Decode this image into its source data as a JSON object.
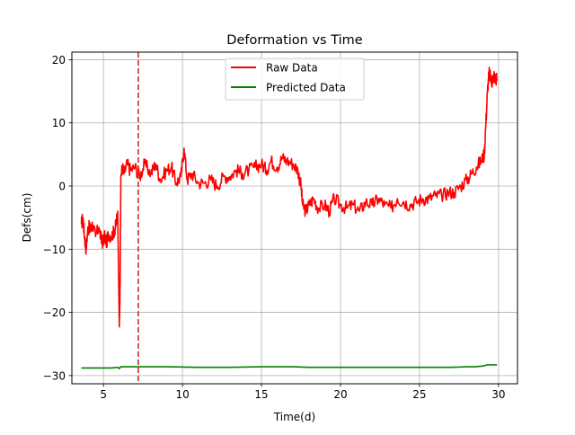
{
  "chart_data": {
    "type": "line",
    "title": "Deformation vs Time",
    "xlabel": "Time(d)",
    "ylabel": "Defs(cm)",
    "xlim": [
      3.0,
      31.2
    ],
    "ylim": [
      -31.3,
      21.2
    ],
    "x_ticks": [
      5,
      10,
      15,
      20,
      25,
      30
    ],
    "y_ticks": [
      -30,
      -20,
      -10,
      0,
      10,
      20
    ],
    "y_tick_labels": [
      "−30",
      "−20",
      "−10",
      "0",
      "10",
      "20"
    ],
    "grid": true,
    "legend_position": "upper center",
    "vline": {
      "x": 7.2,
      "color": "#d62728",
      "style": "dashed"
    },
    "series": [
      {
        "name": "Raw Data",
        "color": "#ff0000",
        "x": [
          3.6,
          3.7,
          3.8,
          3.9,
          4.0,
          4.1,
          4.2,
          4.3,
          4.5,
          4.7,
          4.9,
          5.0,
          5.1,
          5.2,
          5.3,
          5.5,
          5.7,
          5.8,
          5.9,
          6.0,
          6.05,
          6.1,
          6.2,
          6.3,
          6.5,
          6.7,
          7.0,
          7.3,
          7.6,
          8.0,
          8.3,
          8.6,
          9.0,
          9.3,
          9.6,
          9.9,
          10.1,
          10.3,
          10.6,
          11.0,
          11.4,
          11.8,
          12.2,
          12.6,
          13.0,
          13.4,
          13.8,
          14.2,
          14.6,
          15.0,
          15.3,
          15.6,
          16.0,
          16.3,
          16.6,
          17.0,
          17.3,
          17.5,
          17.6,
          17.8,
          18.0,
          18.3,
          18.6,
          19.0,
          19.3,
          19.6,
          20.0,
          20.4,
          20.8,
          21.2,
          21.6,
          22.0,
          22.4,
          22.8,
          23.2,
          23.6,
          24.0,
          24.4,
          24.8,
          25.2,
          25.6,
          26.0,
          26.4,
          26.8,
          27.2,
          27.6,
          28.0,
          28.3,
          28.6,
          28.9,
          29.1,
          29.2,
          29.3,
          29.4,
          29.5,
          29.6,
          29.7,
          29.8,
          29.9
        ],
        "y": [
          -6,
          -5,
          -8,
          -10,
          -7,
          -6.5,
          -7,
          -6,
          -8,
          -6.5,
          -9,
          -8.5,
          -8,
          -9,
          -7.5,
          -8,
          -7,
          -6,
          -4,
          -22,
          -16,
          1.5,
          3,
          2,
          3.5,
          2.5,
          3,
          1.5,
          3.5,
          2,
          3.5,
          1,
          2.5,
          3,
          0.5,
          1.5,
          6,
          1,
          2,
          0.5,
          0.5,
          1,
          0,
          1.5,
          1.5,
          2.5,
          2,
          2.5,
          3,
          3.5,
          2.5,
          4,
          3,
          4.5,
          4,
          3.5,
          2.5,
          0,
          -3,
          -4,
          -3,
          -2,
          -3.5,
          -3,
          -4,
          -2,
          -3,
          -3.5,
          -3,
          -4,
          -2.5,
          -3,
          -2,
          -3,
          -3.5,
          -2,
          -2.5,
          -3,
          -2.5,
          -2,
          -2,
          -1.5,
          -1.5,
          -1,
          -1,
          0,
          1,
          2,
          3,
          4,
          5,
          10,
          15,
          18,
          17,
          16.5,
          17.5,
          17,
          17
        ],
        "x_extra": [],
        "y_extra": []
      },
      {
        "name": "Predicted Data",
        "color": "#008000",
        "x": [
          3.6,
          4.5,
          5.5,
          5.9,
          6.0,
          6.1,
          6.6,
          7.5,
          9,
          11,
          13,
          15,
          16,
          17,
          18,
          20,
          22,
          24,
          26,
          27,
          28,
          28.5,
          29,
          29.3,
          29.5,
          29.9
        ],
        "y": [
          -28.8,
          -28.8,
          -28.8,
          -28.7,
          -28.9,
          -28.6,
          -28.6,
          -28.6,
          -28.6,
          -28.7,
          -28.7,
          -28.6,
          -28.6,
          -28.6,
          -28.7,
          -28.7,
          -28.7,
          -28.7,
          -28.7,
          -28.7,
          -28.6,
          -28.6,
          -28.5,
          -28.3,
          -28.3,
          -28.3
        ]
      }
    ]
  }
}
